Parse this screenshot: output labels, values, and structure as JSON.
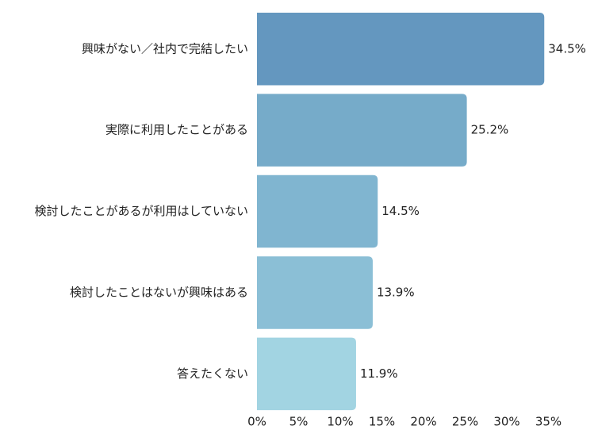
{
  "chart_data": {
    "type": "bar",
    "orientation": "horizontal",
    "categories": [
      "興味がない／社内で完結したい",
      "実際に利用したことがある",
      "検討したことがあるが利用はしていない",
      "検討したことはないが興味はある",
      "答えたくない"
    ],
    "values": [
      34.5,
      25.2,
      14.5,
      13.9,
      11.9
    ],
    "value_labels": [
      "34.5%",
      "25.2%",
      "14.5%",
      "13.9%",
      "11.9%"
    ],
    "bar_colors": [
      "#6497bf",
      "#76abc9",
      "#80b5d0",
      "#8bbfd6",
      "#a2d4e2"
    ],
    "x_ticks": [
      0,
      5,
      10,
      15,
      20,
      25,
      30,
      35
    ],
    "x_tick_labels": [
      "0%",
      "5%",
      "10%",
      "15%",
      "20%",
      "25%",
      "30%",
      "35%"
    ],
    "xlim": [
      0,
      35
    ],
    "title": "",
    "xlabel": "",
    "ylabel": "",
    "grid": false,
    "legend": "none"
  }
}
